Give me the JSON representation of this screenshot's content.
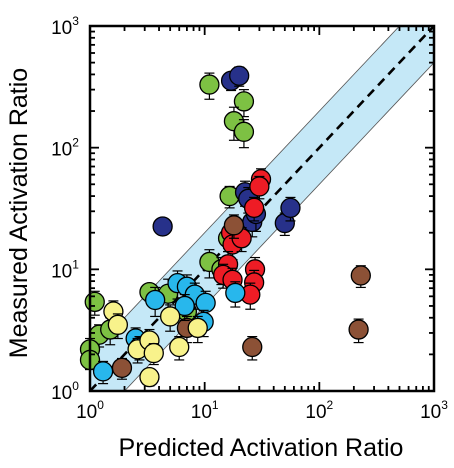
{
  "chart_data": {
    "type": "scatter",
    "x_scale": "log",
    "y_scale": "log",
    "xlim": [
      1,
      1000
    ],
    "ylim": [
      1,
      1000
    ],
    "xlabel": "Predicted Activation Ratio",
    "ylabel": "Measured  Activation Ratio",
    "x_ticks": [
      {
        "base": "10",
        "exp": "0",
        "value": 1
      },
      {
        "base": "10",
        "exp": "1",
        "value": 10
      },
      {
        "base": "10",
        "exp": "2",
        "value": 100
      },
      {
        "base": "10",
        "exp": "3",
        "value": 1000
      }
    ],
    "y_ticks": [
      {
        "base": "10",
        "exp": "0",
        "value": 1
      },
      {
        "base": "10",
        "exp": "1",
        "value": 10
      },
      {
        "base": "10",
        "exp": "2",
        "value": 100
      },
      {
        "base": "10",
        "exp": "3",
        "value": 1000
      }
    ],
    "band_factor": 2,
    "colors": {
      "green": "#7dc143",
      "navy": "#27318a",
      "red": "#ee1c25",
      "brown": "#8c5136",
      "cyan": "#28b7ec",
      "yellow": "#f8f28b",
      "band": "#c5e8f7"
    },
    "series": [
      {
        "color": "green",
        "points": [
          {
            "x": 1.1,
            "y": 5.4,
            "err": 1.2
          },
          {
            "x": 1.2,
            "y": 2.9,
            "err": 0.6
          },
          {
            "x": 1.0,
            "y": 2.2,
            "err": 0.5
          },
          {
            "x": 1.0,
            "y": 1.8,
            "err": 0.3
          },
          {
            "x": 1.5,
            "y": 3.2,
            "err": 0.8
          },
          {
            "x": 3.3,
            "y": 6.5,
            "err": 1.0
          },
          {
            "x": 4.8,
            "y": 6.3,
            "err": 2.0
          },
          {
            "x": 7.0,
            "y": 4.5,
            "err": 1.0
          },
          {
            "x": 11.0,
            "y": 11.5,
            "err": 3.0
          },
          {
            "x": 14.0,
            "y": 10.0,
            "err": 2.5
          },
          {
            "x": 16.0,
            "y": 18.0,
            "err": 4.0
          },
          {
            "x": 16.5,
            "y": 40.0,
            "err": 8.0
          },
          {
            "x": 11.0,
            "y": 330.0,
            "err": 80.0
          },
          {
            "x": 22.0,
            "y": 240.0,
            "err": 60.0
          },
          {
            "x": 18.0,
            "y": 165.0,
            "err": 50.0
          },
          {
            "x": 22.0,
            "y": 135.0,
            "err": 35.0
          }
        ]
      },
      {
        "color": "navy",
        "points": [
          {
            "x": 17.0,
            "y": 355.0,
            "err": 60.0
          },
          {
            "x": 20.0,
            "y": 390.0,
            "err": 70.0
          },
          {
            "x": 4.3,
            "y": 22.5,
            "err": 3.0
          },
          {
            "x": 22.5,
            "y": 43.0,
            "err": 10.0
          },
          {
            "x": 26.0,
            "y": 24.5,
            "err": 6.0
          },
          {
            "x": 28.0,
            "y": 28.5,
            "err": 8.0
          },
          {
            "x": 50.0,
            "y": 24.0,
            "err": 5.0
          },
          {
            "x": 56.0,
            "y": 32.0,
            "err": 7.0
          },
          {
            "x": 24.0,
            "y": 38.0,
            "err": 9.0
          }
        ]
      },
      {
        "color": "red",
        "points": [
          {
            "x": 31.0,
            "y": 55.0,
            "err": 12.0
          },
          {
            "x": 30.0,
            "y": 48.0,
            "err": 10.0
          },
          {
            "x": 27.0,
            "y": 32.0,
            "err": 7.0
          },
          {
            "x": 17.0,
            "y": 20.0,
            "err": 5.0
          },
          {
            "x": 17.5,
            "y": 16.0,
            "err": 4.0
          },
          {
            "x": 16.0,
            "y": 11.0,
            "err": 3.0
          },
          {
            "x": 14.5,
            "y": 9.0,
            "err": 2.0
          },
          {
            "x": 17.5,
            "y": 8.2,
            "err": 2.0
          },
          {
            "x": 27.5,
            "y": 10.0,
            "err": 2.5
          },
          {
            "x": 27.0,
            "y": 7.8,
            "err": 2.0
          },
          {
            "x": 25.0,
            "y": 6.2,
            "err": 1.5
          },
          {
            "x": 21.0,
            "y": 18.0,
            "err": 4.0
          }
        ]
      },
      {
        "color": "brown",
        "points": [
          {
            "x": 18.0,
            "y": 23.0,
            "err": 5.0
          },
          {
            "x": 230.0,
            "y": 8.9,
            "err": 1.8
          },
          {
            "x": 220.0,
            "y": 3.2,
            "err": 0.7
          },
          {
            "x": 26.0,
            "y": 2.3,
            "err": 0.5
          },
          {
            "x": 7.0,
            "y": 3.3,
            "err": 0.8
          },
          {
            "x": 1.9,
            "y": 1.55,
            "err": 0.3
          }
        ]
      },
      {
        "color": "cyan",
        "points": [
          {
            "x": 1.3,
            "y": 1.45,
            "err": 0.3
          },
          {
            "x": 2.5,
            "y": 2.7,
            "err": 0.6
          },
          {
            "x": 2.7,
            "y": 2.3,
            "err": 0.5
          },
          {
            "x": 3.7,
            "y": 5.6,
            "err": 1.5
          },
          {
            "x": 5.8,
            "y": 7.7,
            "err": 2.0
          },
          {
            "x": 7.0,
            "y": 7.2,
            "err": 1.8
          },
          {
            "x": 8.2,
            "y": 6.2,
            "err": 1.5
          },
          {
            "x": 6.7,
            "y": 5.0,
            "err": 1.2
          },
          {
            "x": 10.2,
            "y": 5.3,
            "err": 1.3
          },
          {
            "x": 9.8,
            "y": 3.7,
            "err": 0.9
          },
          {
            "x": 18.5,
            "y": 6.4,
            "err": 1.5
          }
        ]
      },
      {
        "color": "yellow",
        "points": [
          {
            "x": 1.6,
            "y": 4.5,
            "err": 1.0
          },
          {
            "x": 1.75,
            "y": 3.5,
            "err": 0.8
          },
          {
            "x": 2.6,
            "y": 2.2,
            "err": 0.5
          },
          {
            "x": 3.3,
            "y": 2.6,
            "err": 0.6
          },
          {
            "x": 3.6,
            "y": 2.05,
            "err": 0.4
          },
          {
            "x": 3.3,
            "y": 1.3,
            "err": 0.2
          },
          {
            "x": 5.0,
            "y": 4.1,
            "err": 1.0
          },
          {
            "x": 6.0,
            "y": 2.3,
            "err": 0.5
          },
          {
            "x": 8.7,
            "y": 3.3,
            "err": 0.8
          }
        ]
      }
    ]
  }
}
